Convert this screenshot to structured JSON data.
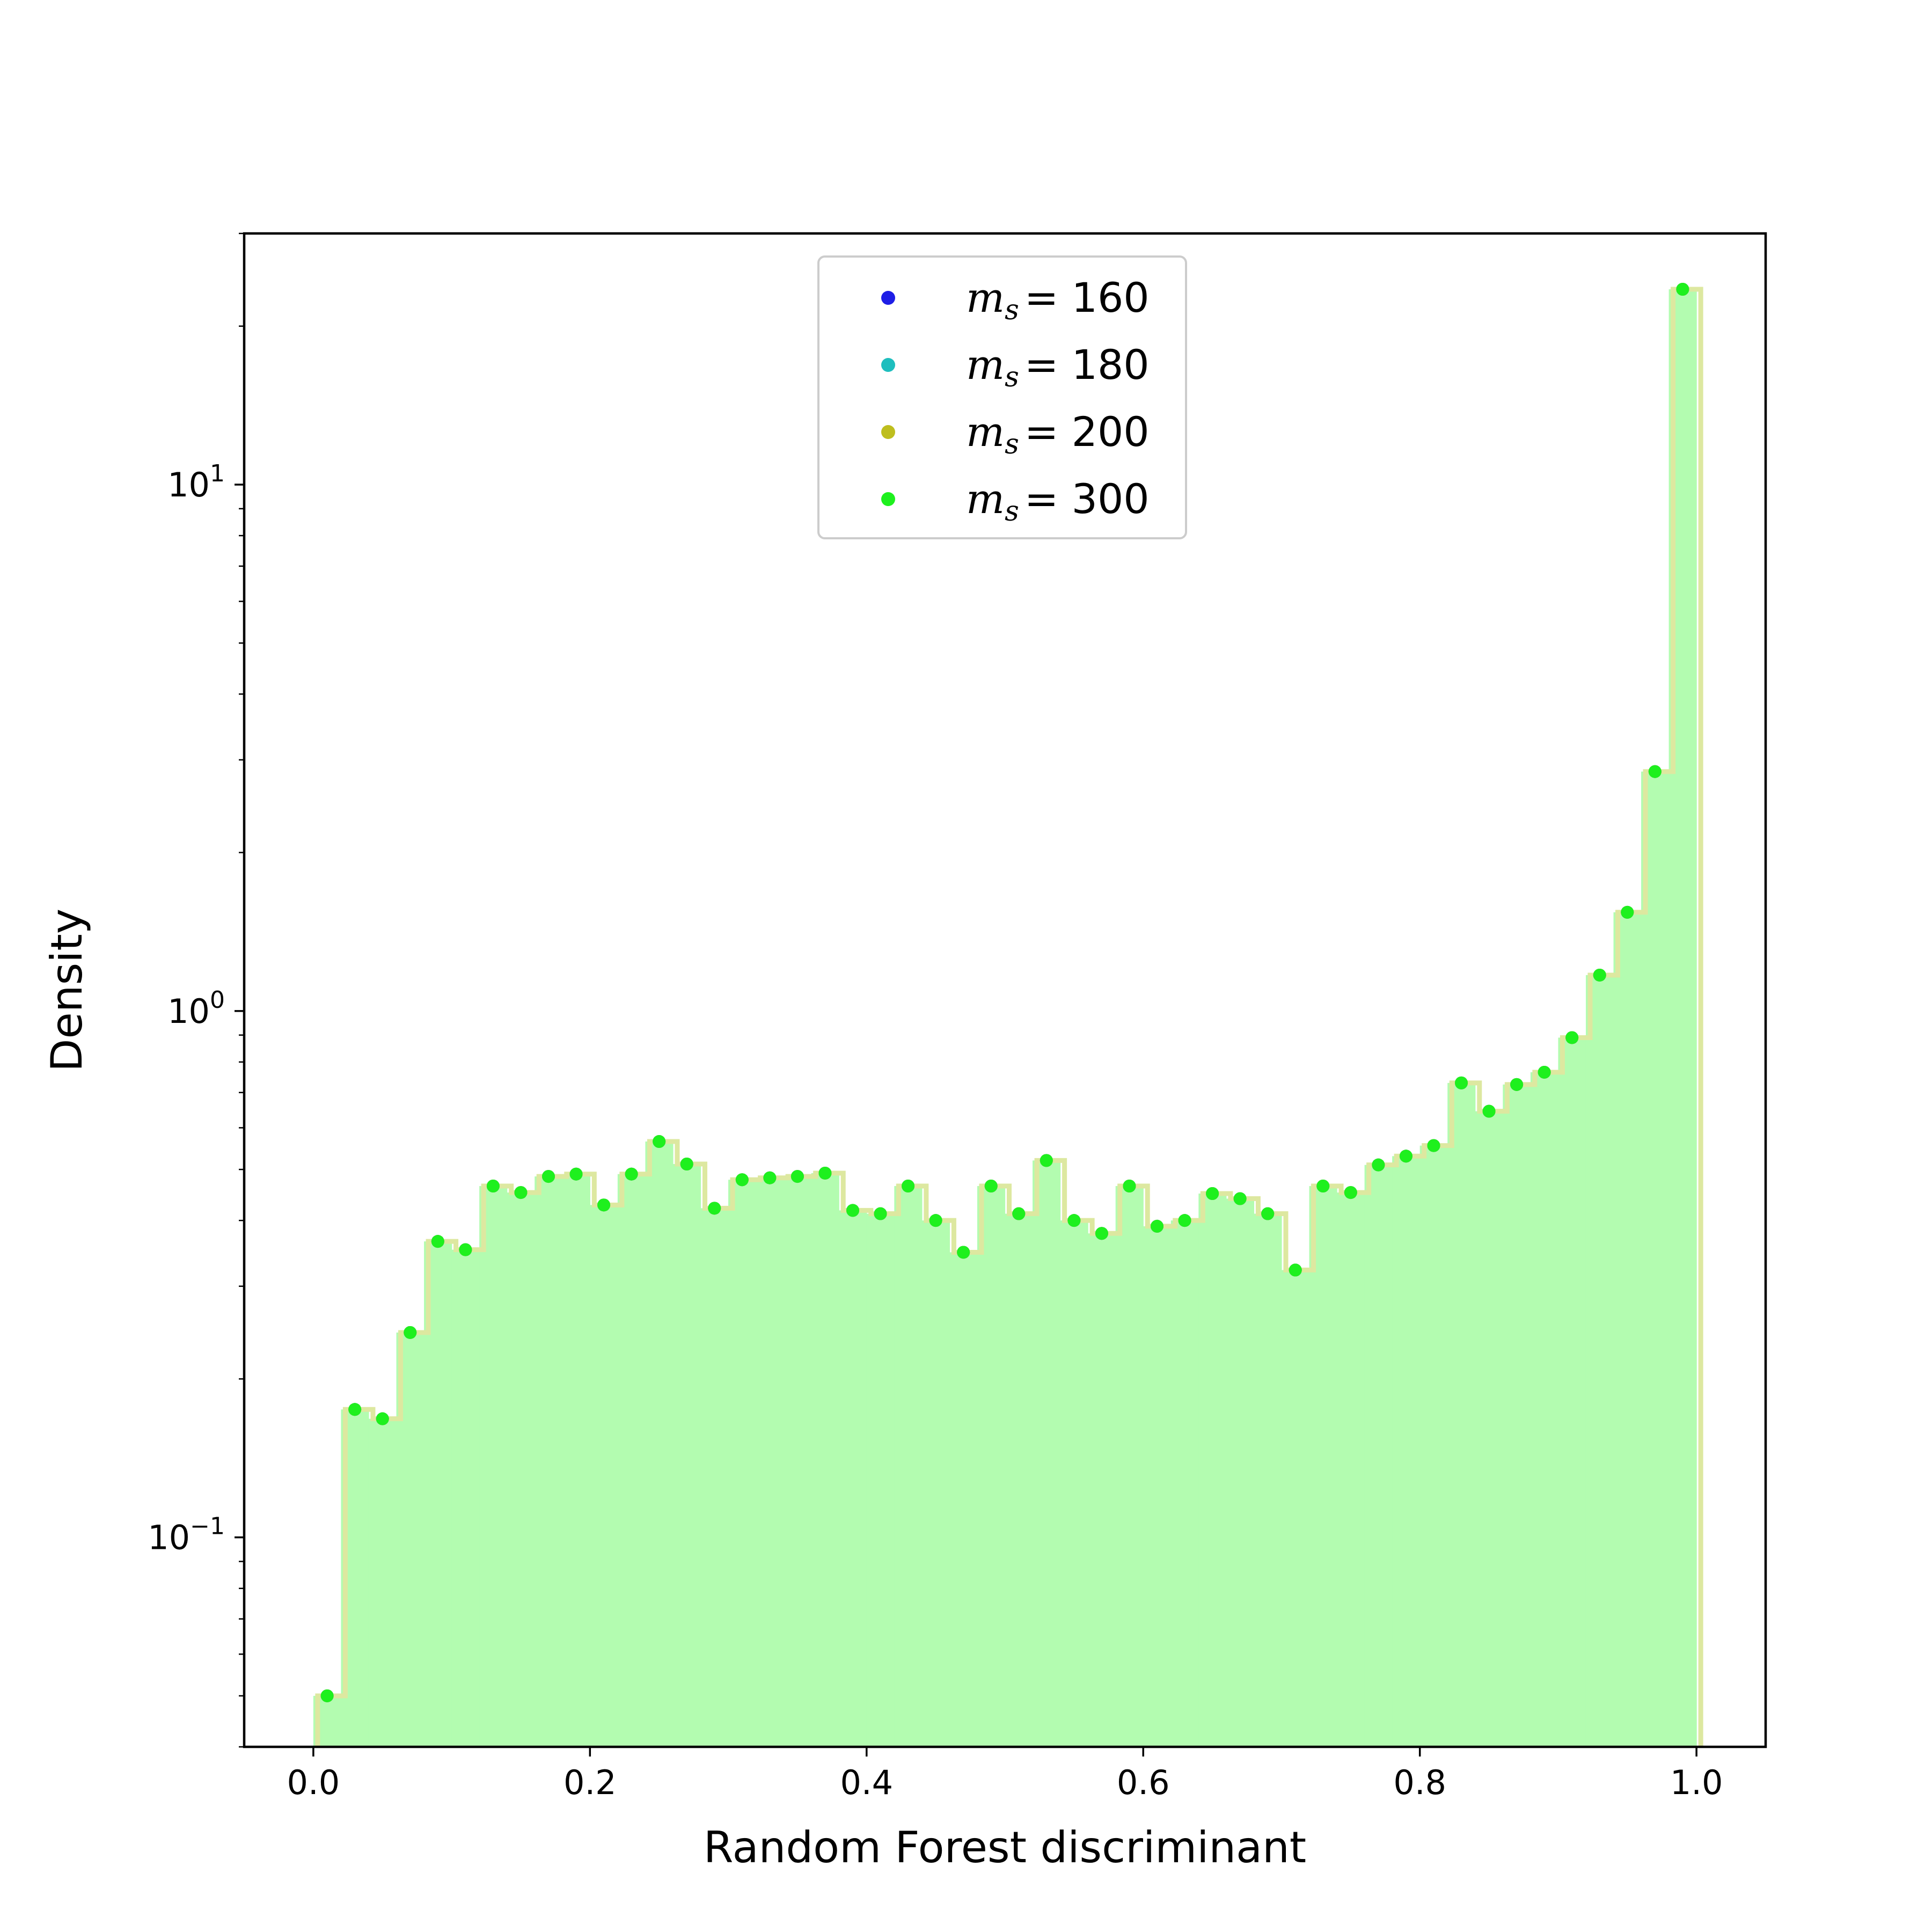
{
  "chart_data": {
    "type": "bar",
    "xlabel": "Random Forest discriminant",
    "ylabel": "Density",
    "xlim": [
      -0.05,
      1.05
    ],
    "ylim": [
      0.04,
      30
    ],
    "yscale": "log",
    "xticks": [
      0.0,
      0.2,
      0.4,
      0.6,
      0.8,
      1.0
    ],
    "xtick_labels": [
      "0.0",
      "0.2",
      "0.4",
      "0.6",
      "0.8",
      "1.0"
    ],
    "yticks": [
      0.1,
      1,
      10
    ],
    "ytick_labels": [
      {
        "base": "10",
        "exp": "−1"
      },
      {
        "base": "10",
        "exp": "0"
      },
      {
        "base": "10",
        "exp": "1"
      }
    ],
    "legend_location": "upper-center",
    "bin_edges_step": 0.02,
    "x": [
      0.01,
      0.03,
      0.05,
      0.07,
      0.09,
      0.11,
      0.13,
      0.15,
      0.17,
      0.19,
      0.21,
      0.23,
      0.25,
      0.27,
      0.29,
      0.31,
      0.33,
      0.35,
      0.37,
      0.39,
      0.41,
      0.43,
      0.45,
      0.47,
      0.49,
      0.51,
      0.53,
      0.55,
      0.57,
      0.59,
      0.61,
      0.63,
      0.65,
      0.67,
      0.69,
      0.71,
      0.73,
      0.75,
      0.77,
      0.79,
      0.81,
      0.83,
      0.85,
      0.87,
      0.89,
      0.91,
      0.93,
      0.95,
      0.97,
      0.99
    ],
    "values": [
      0.05,
      0.175,
      0.168,
      0.245,
      0.365,
      0.352,
      0.465,
      0.452,
      0.485,
      0.49,
      0.428,
      0.49,
      0.565,
      0.512,
      0.422,
      0.478,
      0.482,
      0.485,
      0.492,
      0.418,
      0.412,
      0.465,
      0.4,
      0.348,
      0.465,
      0.412,
      0.52,
      0.4,
      0.378,
      0.465,
      0.39,
      0.4,
      0.45,
      0.44,
      0.412,
      0.322,
      0.465,
      0.452,
      0.51,
      0.53,
      0.555,
      0.73,
      0.645,
      0.725,
      0.765,
      0.89,
      1.17,
      1.54,
      2.85,
      23.5
    ],
    "series": [
      {
        "name": "m_s = 160",
        "label_var": "m",
        "label_sub": "s",
        "label_val": "= 160",
        "color": "#1e1ee6",
        "values": [
          0.05,
          0.175,
          0.168,
          0.245,
          0.365,
          0.352,
          0.465,
          0.452,
          0.485,
          0.49,
          0.428,
          0.49,
          0.565,
          0.512,
          0.422,
          0.478,
          0.482,
          0.485,
          0.492,
          0.418,
          0.412,
          0.465,
          0.4,
          0.348,
          0.465,
          0.412,
          0.52,
          0.4,
          0.378,
          0.465,
          0.39,
          0.4,
          0.45,
          0.44,
          0.412,
          0.322,
          0.465,
          0.452,
          0.51,
          0.53,
          0.555,
          0.73,
          0.645,
          0.725,
          0.765,
          0.89,
          1.17,
          1.54,
          2.85,
          23.5
        ]
      },
      {
        "name": "m_s = 180",
        "label_var": "m",
        "label_sub": "s",
        "label_val": "= 180",
        "color": "#1ebebe",
        "values": [
          0.05,
          0.175,
          0.168,
          0.245,
          0.365,
          0.352,
          0.465,
          0.452,
          0.485,
          0.49,
          0.428,
          0.49,
          0.565,
          0.512,
          0.422,
          0.478,
          0.482,
          0.485,
          0.492,
          0.418,
          0.412,
          0.465,
          0.4,
          0.348,
          0.465,
          0.412,
          0.52,
          0.4,
          0.378,
          0.465,
          0.39,
          0.4,
          0.45,
          0.44,
          0.412,
          0.322,
          0.465,
          0.452,
          0.51,
          0.53,
          0.555,
          0.73,
          0.645,
          0.725,
          0.765,
          0.89,
          1.17,
          1.54,
          2.85,
          23.5
        ]
      },
      {
        "name": "m_s = 200",
        "label_var": "m",
        "label_sub": "s",
        "label_val": "= 200",
        "color": "#bebe1e",
        "values": [
          0.05,
          0.175,
          0.168,
          0.245,
          0.365,
          0.352,
          0.465,
          0.452,
          0.485,
          0.49,
          0.428,
          0.49,
          0.565,
          0.512,
          0.422,
          0.478,
          0.482,
          0.485,
          0.492,
          0.418,
          0.412,
          0.465,
          0.4,
          0.348,
          0.465,
          0.412,
          0.52,
          0.4,
          0.378,
          0.465,
          0.39,
          0.4,
          0.45,
          0.44,
          0.412,
          0.322,
          0.465,
          0.452,
          0.51,
          0.53,
          0.555,
          0.73,
          0.645,
          0.725,
          0.765,
          0.89,
          1.17,
          1.54,
          2.85,
          23.5
        ]
      },
      {
        "name": "m_s = 300",
        "label_var": "m",
        "label_sub": "s",
        "label_val": "= 300",
        "color": "#1ef01e",
        "values": [
          0.05,
          0.175,
          0.168,
          0.245,
          0.365,
          0.352,
          0.465,
          0.452,
          0.485,
          0.49,
          0.428,
          0.49,
          0.565,
          0.512,
          0.422,
          0.478,
          0.482,
          0.485,
          0.492,
          0.418,
          0.412,
          0.465,
          0.4,
          0.348,
          0.465,
          0.412,
          0.52,
          0.4,
          0.378,
          0.465,
          0.39,
          0.4,
          0.45,
          0.44,
          0.412,
          0.322,
          0.465,
          0.452,
          0.51,
          0.53,
          0.555,
          0.73,
          0.645,
          0.725,
          0.765,
          0.89,
          1.17,
          1.54,
          2.85,
          23.5
        ]
      }
    ],
    "colors": {
      "fill": "#b3fcb0",
      "step_outline": "#dde8a0",
      "frame": "#000000",
      "legend_border": "#cccccc"
    }
  }
}
